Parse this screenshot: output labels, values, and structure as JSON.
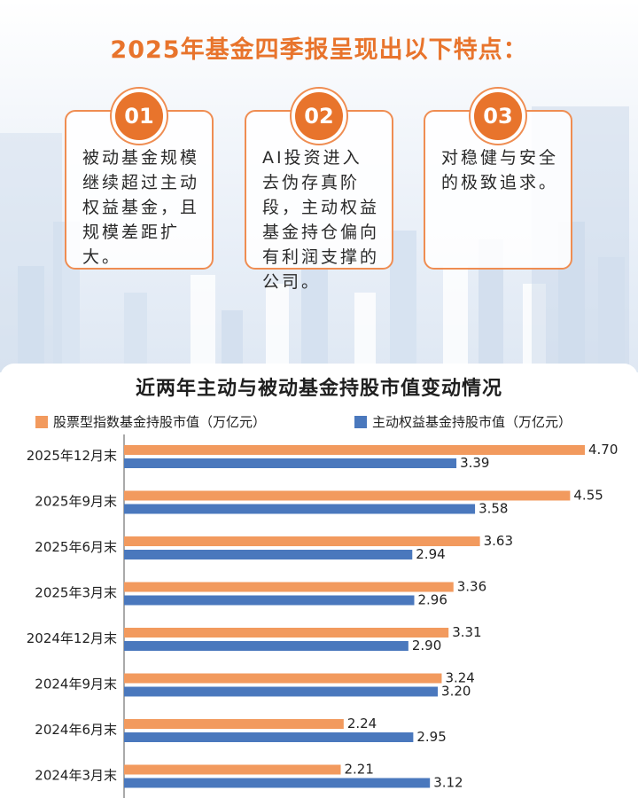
{
  "headline": "2025年基金四季报呈现出以下特点：",
  "cards": [
    {
      "num": "01",
      "text": "被动基金规模继续超过主动权益基金，且规模差距扩大。"
    },
    {
      "num": "02",
      "text": "AI投资进入去伪存真阶段，主动权益基金持仓偏向有利润支撑的公司。"
    },
    {
      "num": "03",
      "text": "对稳健与安全的极致追求。"
    }
  ],
  "colors": {
    "accent": "#e8742c",
    "orange_series": "#f29a5e",
    "blue_series": "#4a78bd"
  },
  "chart_data": {
    "type": "bar",
    "orientation": "horizontal",
    "title": "近两年主动与被动基金持股市值变动情况",
    "legend_position": "top",
    "categories": [
      "2025年12月末",
      "2025年9月末",
      "2025年6月末",
      "2025年3月末",
      "2024年12月末",
      "2024年9月末",
      "2024年6月末",
      "2024年3月末"
    ],
    "series": [
      {
        "name": "股票型指数基金持股市值（万亿元）",
        "values": [
          4.7,
          4.55,
          3.63,
          3.36,
          3.31,
          3.24,
          2.24,
          2.21
        ],
        "color": "#f29a5e"
      },
      {
        "name": "主动权益基金持股市值（万亿元）",
        "values": [
          3.39,
          3.58,
          2.94,
          2.96,
          2.9,
          3.2,
          2.95,
          3.12
        ],
        "color": "#4a78bd"
      }
    ],
    "xlim": [
      0,
      4.7
    ],
    "grid": false
  }
}
